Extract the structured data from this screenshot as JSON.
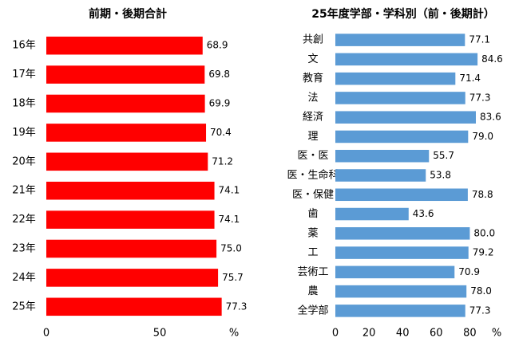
{
  "chart_data": [
    {
      "type": "bar",
      "orientation": "horizontal",
      "title": "前期・後期合計",
      "categories": [
        "16年",
        "17年",
        "18年",
        "19年",
        "20年",
        "21年",
        "22年",
        "23年",
        "24年",
        "25年"
      ],
      "values": [
        68.9,
        69.8,
        69.9,
        70.4,
        71.2,
        74.1,
        74.1,
        75.0,
        75.7,
        77.3
      ],
      "value_labels": [
        "68.9",
        "69.8",
        "69.9",
        "70.4",
        "71.2",
        "74.1",
        "74.1",
        "75.0",
        "75.7",
        "77.3"
      ],
      "color": "#ff0000",
      "xlim": [
        0,
        82
      ],
      "xticks": [
        0,
        50
      ],
      "xlabel": "%",
      "grid": false
    },
    {
      "type": "bar",
      "orientation": "horizontal",
      "title": "25年度学部・学科別（前・後期計）",
      "categories": [
        "共創",
        "文",
        "教育",
        "法",
        "経済",
        "理",
        "医・医",
        "医・生命科",
        "医・保健",
        "歯",
        "薬",
        "工",
        "芸術工",
        "農",
        "全学部"
      ],
      "values": [
        77.1,
        84.6,
        71.4,
        77.3,
        83.6,
        79.0,
        55.7,
        53.8,
        78.8,
        43.6,
        80.0,
        79.2,
        70.9,
        78.0,
        77.3
      ],
      "value_labels": [
        "77.1",
        "84.6",
        "71.4",
        "77.3",
        "83.6",
        "79.0",
        "55.7",
        "53.8",
        "78.8",
        "43.6",
        "80.0",
        "79.2",
        "70.9",
        "78.0",
        "77.3"
      ],
      "color": "#5b9bd5",
      "xlim": [
        0,
        95
      ],
      "xticks": [
        0,
        20,
        40,
        60,
        80
      ],
      "xlabel": "%",
      "grid": false
    }
  ]
}
